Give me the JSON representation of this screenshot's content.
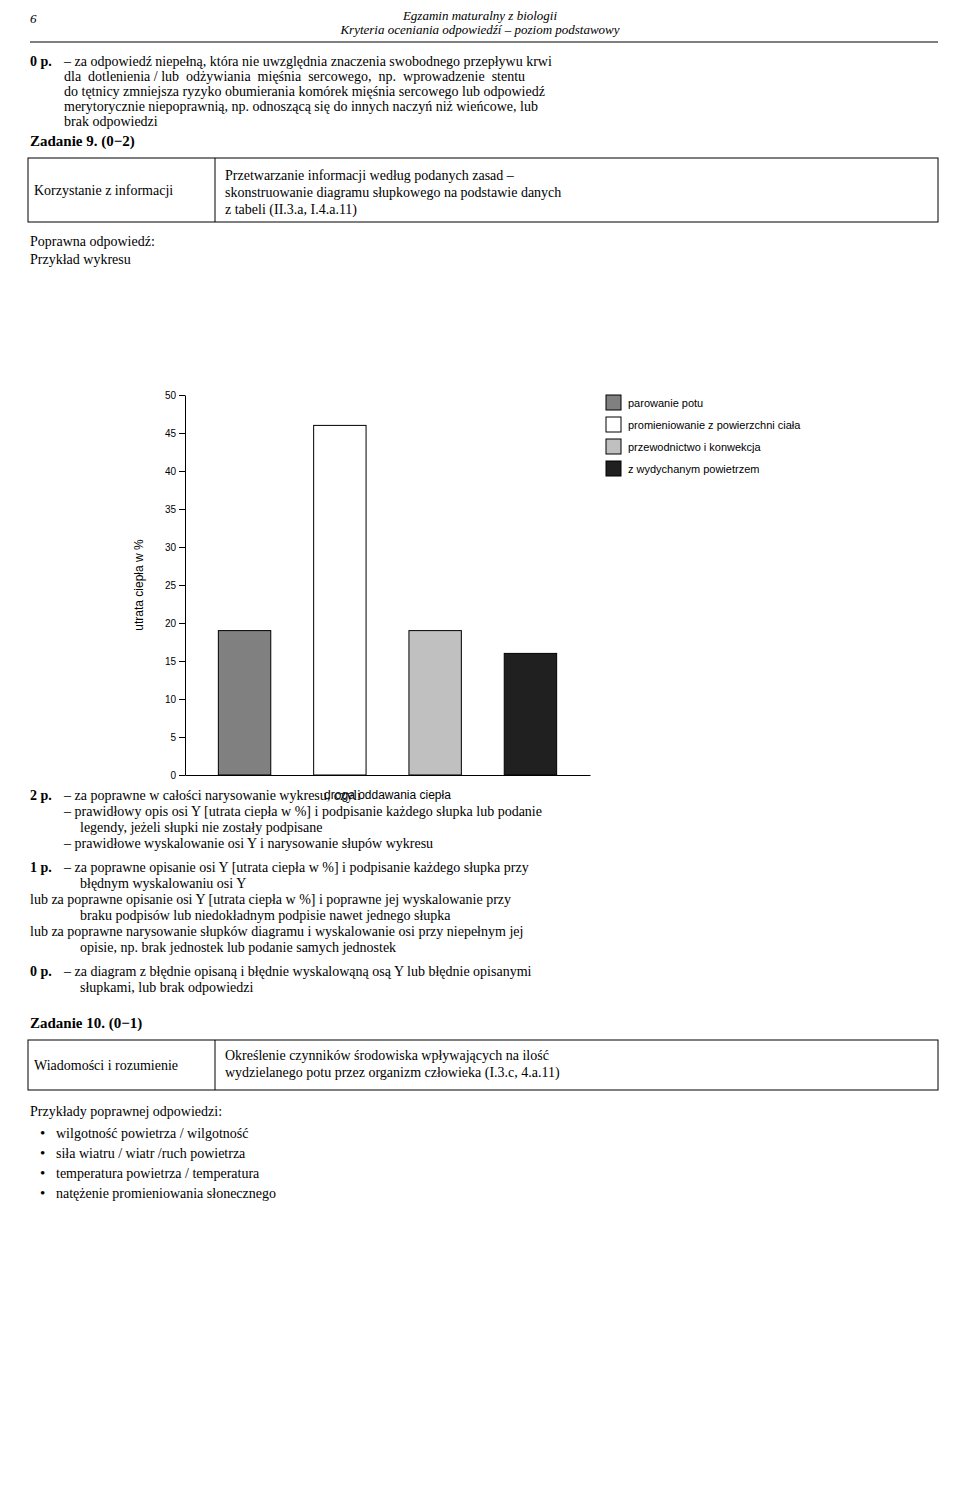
{
  "chart_data": {
    "type": "bar",
    "categories": [
      "parowanie potu",
      "promieniowanie z powierzchni ciała",
      "przewodnictwo i konwekcja",
      "z wydychanym powietrzem"
    ],
    "values": [
      19,
      46,
      19,
      16
    ],
    "colors": [
      "#808080",
      "#ffffff",
      "#c0c0c0",
      "#202020"
    ],
    "ylabel": "utrata ciepła w %",
    "xlabel": "droga oddawania ciepła",
    "ylim": [
      0,
      50
    ],
    "yticks": [
      0,
      5,
      10,
      15,
      20,
      25,
      30,
      35,
      40,
      45,
      50
    ],
    "grid": false,
    "legend": "right",
    "tick_labels": "y"
  },
  "page": {
    "header_left": "6",
    "header_center": [
      "Egzamin maturalny z biologii",
      "Kryteria oceniania odpowiedźí – poziom podstawowy"
    ],
    "score_0a": {
      "score": "0 p.",
      "lines": [
        "– za odpowiedź niepełną, która nie uwzględnia znaczenia swobodnego przepływu krwi",
        "dla  dotlenienia / lub  odżywiania  mięśnia  sercowego,  np.  wprowadzenie  stentu",
        "do tętnicy zmniejsza ryzyko obumierania komórek mięśnia sercowego lub odpowiedź",
        "merytorycznie niepoprawnią, np. odnoszącą się do innych naczyń niż wieńcowe, lub",
        "brak odpowiedzi"
      ]
    },
    "task9_title": "Zadanie 9. (0−2)",
    "task9_table": {
      "skill": "Korzystanie z informacji",
      "requirement": [
        "Przetwarzanie informacji według podanych zasad –",
        "skonstruowanie diagramu słupkowego na podstawie danych",
        "z tabeli (II.3.a, I.4.a.11)"
      ]
    },
    "answer_label": "Poprawna odpowiedź:",
    "example_label": "Przykład wykresu",
    "score_2": {
      "score": "2 p.",
      "lines": [
        "– za poprawne w całości narysowanie wykresu, czyli",
        "– prawidłowy opis osi Y [utrata ciepła w %] i podpisanie każdego słupka lub podanie",
        "legendy, jeżeli słupki nie zostały podpisane",
        "– prawidłowe wyskalowanie osi Y i narysowanie słupów wykresu"
      ]
    },
    "score_1": {
      "score": "1 p.",
      "lines": [
        "– za poprawne opisanie osi Y [utrata ciepła w %] i podpisanie każdego słupka przy",
        "błędnym wyskalowaniu osi Y",
        "lub za poprawne opisanie osi Y [utrata ciepła w %] i poprawne jej wyskalowanie przy",
        "braku podpisów lub niedokładnym podpisie nawet jednego słupka",
        "lub za poprawne narysowanie słupków diagramu i wyskalowanie osi przy niepełnym jej",
        "opisie, np. brak jednostek lub podanie samych jednostek"
      ]
    },
    "score_0b": {
      "score": "0 p.",
      "lines": [
        "– za diagram z błędnie opisaną i błędnie wyskalowąną osą Y lub błędnie opisanymi",
        "słupkami, lub brak odpowiedzi"
      ]
    },
    "task10_title": "Zadanie 10. (0−1)",
    "task10_table": {
      "skill": "Wiadomości i rozumienie",
      "requirement": [
        "Określenie czynników środowiska wpływających na ilość",
        "wydzielanego potu przez organizm człowieka (I.3.c, 4.a.11)"
      ]
    },
    "examples_label": "Przykłady poprawnej odpowiedzi:",
    "bullet": "•",
    "examples": [
      "wilgotność powietrza / wilgotność",
      "siła wiatru / wiatr /ruch powietrza",
      "temperatura powietrza / temperatura",
      "natężenie promieniowania słonecznego"
    ]
  }
}
